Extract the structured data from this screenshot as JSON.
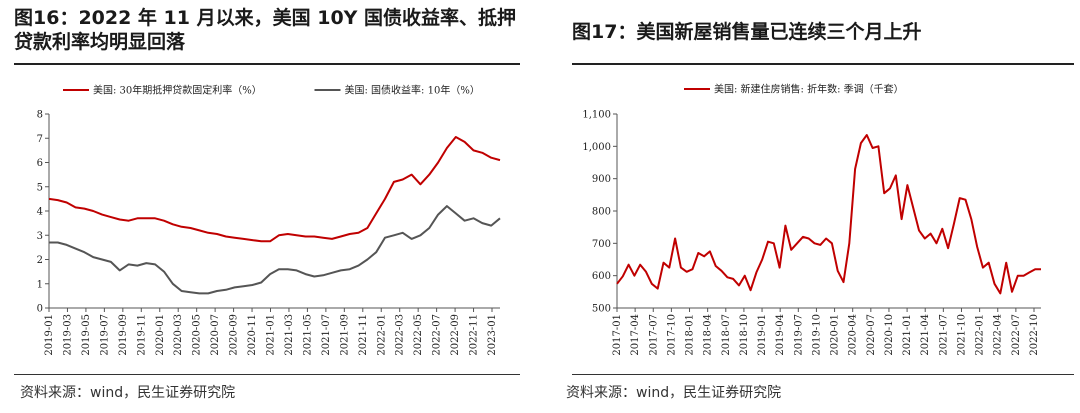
{
  "figures": [
    {
      "title": "图16：2022 年 11 月以来，美国 10Y 国债收益率、抵押贷款利率均明显回落",
      "source": "资料来源：wind，民生证券研究院"
    },
    {
      "title": "图17：美国新屋销售量已连续三个月上升",
      "source": "资料来源：wind，民生证券研究院"
    }
  ],
  "chart_data": [
    {
      "type": "line",
      "x_ticks": [
        "2019-01",
        "2019-03",
        "2019-05",
        "2019-07",
        "2019-09",
        "2019-11",
        "2020-01",
        "2020-03",
        "2020-05",
        "2020-07",
        "2020-09",
        "2020-11",
        "2021-01",
        "2021-03",
        "2021-05",
        "2021-07",
        "2021-09",
        "2021-11",
        "2022-01",
        "2022-03",
        "2022-05",
        "2022-07",
        "2022-09",
        "2022-11",
        "2023-01"
      ],
      "ylim": [
        0,
        8
      ],
      "y_ticks": [
        0,
        1,
        2,
        3,
        4,
        5,
        6,
        7,
        8
      ],
      "grid": false,
      "legend_position": "top",
      "series": [
        {
          "name": "美国: 30年期抵押贷款固定利率（%）",
          "color": "#c00000",
          "x": [
            0,
            1,
            2,
            3,
            4,
            5,
            6,
            7,
            8,
            9,
            10,
            11,
            12,
            13,
            14,
            15,
            16,
            17,
            18,
            19,
            20,
            21,
            22,
            23,
            24,
            25,
            26,
            27,
            28,
            29,
            30,
            31,
            32,
            33,
            34,
            35,
            36,
            37,
            38,
            39,
            40,
            41,
            42,
            43,
            44,
            45,
            46,
            47,
            48,
            49,
            50,
            51
          ],
          "values": [
            4.5,
            4.45,
            4.35,
            4.15,
            4.1,
            4.0,
            3.85,
            3.75,
            3.65,
            3.6,
            3.7,
            3.7,
            3.7,
            3.6,
            3.45,
            3.35,
            3.3,
            3.2,
            3.1,
            3.05,
            2.95,
            2.9,
            2.85,
            2.8,
            2.75,
            2.75,
            3.0,
            3.05,
            3.0,
            2.95,
            2.95,
            2.9,
            2.85,
            2.95,
            3.05,
            3.1,
            3.3,
            3.9,
            4.5,
            5.2,
            5.3,
            5.5,
            5.1,
            5.5,
            6.0,
            6.6,
            7.05,
            6.85,
            6.5,
            6.4,
            6.2,
            6.1
          ]
        },
        {
          "name": "美国: 国债收益率: 10年（%）",
          "color": "#555555",
          "x": [
            0,
            1,
            2,
            3,
            4,
            5,
            6,
            7,
            8,
            9,
            10,
            11,
            12,
            13,
            14,
            15,
            16,
            17,
            18,
            19,
            20,
            21,
            22,
            23,
            24,
            25,
            26,
            27,
            28,
            29,
            30,
            31,
            32,
            33,
            34,
            35,
            36,
            37,
            38,
            39,
            40,
            41,
            42,
            43,
            44,
            45,
            46,
            47,
            48,
            49,
            50,
            51
          ],
          "values": [
            2.7,
            2.7,
            2.6,
            2.45,
            2.3,
            2.1,
            2.0,
            1.9,
            1.55,
            1.8,
            1.75,
            1.85,
            1.8,
            1.5,
            1.0,
            0.7,
            0.65,
            0.6,
            0.6,
            0.7,
            0.75,
            0.85,
            0.9,
            0.95,
            1.05,
            1.4,
            1.6,
            1.6,
            1.55,
            1.4,
            1.3,
            1.35,
            1.45,
            1.55,
            1.6,
            1.75,
            2.0,
            2.3,
            2.9,
            3.0,
            3.1,
            2.85,
            3.0,
            3.3,
            3.85,
            4.2,
            3.9,
            3.6,
            3.7,
            3.5,
            3.4,
            3.7
          ]
        }
      ]
    },
    {
      "type": "line",
      "x_ticks": [
        "2017-01",
        "2017-04",
        "2017-07",
        "2017-10",
        "2018-01",
        "2018-04",
        "2018-07",
        "2018-10",
        "2019-01",
        "2019-04",
        "2019-07",
        "2019-10",
        "2020-01",
        "2020-04",
        "2020-07",
        "2020-10",
        "2021-01",
        "2021-04",
        "2021-07",
        "2021-10",
        "2022-01",
        "2022-04",
        "2022-07",
        "2022-10"
      ],
      "ylim": [
        500,
        1100
      ],
      "y_ticks": [
        500,
        600,
        700,
        800,
        900,
        1000,
        1100
      ],
      "grid": false,
      "legend_position": "top",
      "series": [
        {
          "name": "美国: 新建住房销售: 折年数: 季调（千套）",
          "color": "#c00000",
          "x": [
            0,
            1,
            2,
            3,
            4,
            5,
            6,
            7,
            8,
            9,
            10,
            11,
            12,
            13,
            14,
            15,
            16,
            17,
            18,
            19,
            20,
            21,
            22,
            23,
            24,
            25,
            26,
            27,
            28,
            29,
            30,
            31,
            32,
            33,
            34,
            35,
            36,
            37,
            38,
            39,
            40,
            41,
            42,
            43,
            44,
            45,
            46,
            47,
            48,
            49,
            50,
            51,
            52,
            53,
            54,
            55,
            56,
            57,
            58,
            59,
            60,
            61,
            62,
            63,
            64,
            65,
            66,
            67,
            68,
            69,
            70,
            71,
            72,
            73
          ],
          "values": [
            575,
            598,
            634,
            600,
            634,
            612,
            575,
            560,
            640,
            625,
            715,
            625,
            612,
            620,
            670,
            660,
            675,
            630,
            615,
            595,
            590,
            570,
            600,
            555,
            610,
            650,
            705,
            700,
            625,
            755,
            680,
            700,
            720,
            715,
            700,
            695,
            715,
            700,
            615,
            580,
            700,
            930,
            1010,
            1035,
            995,
            1000,
            855,
            870,
            910,
            775,
            880,
            810,
            740,
            715,
            730,
            700,
            745,
            685,
            760,
            840,
            835,
            775,
            690,
            625,
            640,
            575,
            545,
            640,
            550,
            600,
            600,
            610,
            620,
            620
          ]
        }
      ]
    }
  ]
}
